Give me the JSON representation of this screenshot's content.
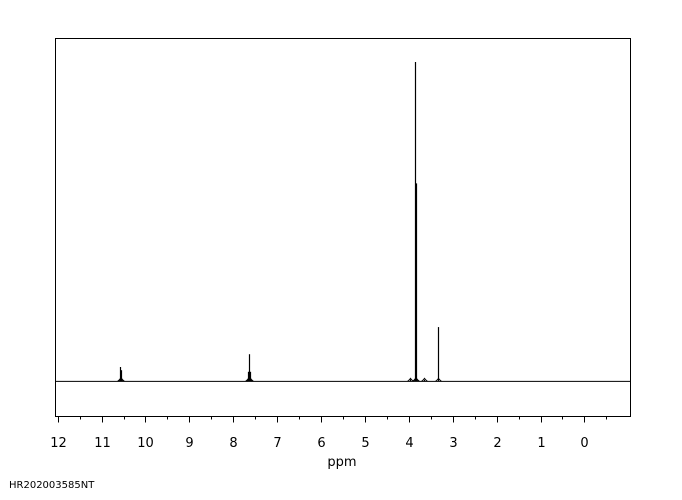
{
  "sample_id": "HR202003585NT",
  "chart_data": {
    "type": "line",
    "title": "",
    "xlabel": "ppm",
    "ylabel": "",
    "x_axis_reversed": true,
    "xlim": [
      12.05,
      -1.05
    ],
    "ylim": [
      -0.11,
      1.0
    ],
    "grid": false,
    "legend": "none",
    "line_color": "#000000",
    "x_ticks": [
      12,
      11,
      10,
      9,
      8,
      7,
      6,
      5,
      4,
      3,
      2,
      1,
      0
    ],
    "x_minor_ticks": [
      11.5,
      10.5,
      9.5,
      8.5,
      7.5,
      6.5,
      5.5,
      4.5,
      3.5,
      2.5,
      1.5,
      0.5,
      -0.5
    ],
    "baseline": 0,
    "peaks": [
      {
        "ppm": 10.58,
        "height": 0.045
      },
      {
        "ppm": 10.55,
        "height": 0.035
      },
      {
        "ppm": 7.67,
        "height": 0.03
      },
      {
        "ppm": 7.65,
        "height": 0.085
      },
      {
        "ppm": 7.63,
        "height": 0.03
      },
      {
        "ppm": 3.98,
        "height": 0.006
      },
      {
        "ppm": 3.86,
        "height": 1.0
      },
      {
        "ppm": 3.84,
        "height": 0.62
      },
      {
        "ppm": 3.65,
        "height": 0.005
      },
      {
        "ppm": 3.34,
        "height": 0.17
      }
    ]
  }
}
